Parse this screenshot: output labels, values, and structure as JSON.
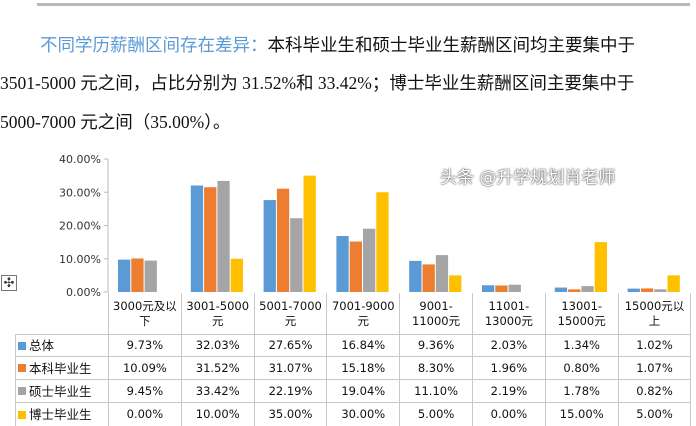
{
  "paragraph": {
    "highlight": "不同学历薪酬区间存在差异：",
    "line1": "本科毕业生和硕士毕业生薪酬区间均主要集中于",
    "line2": "3501-5000 元之间，占比分别为 31.52%和 33.42%；博士毕业生薪酬区间主要集中于",
    "line3": "5000-7000 元之间（35.00%）。"
  },
  "watermark": "头条 @升学规划肖老师",
  "colors": {
    "总体": "#5B9BD5",
    "本科毕业生": "#ED7D31",
    "硕士毕业生": "#A5A5A5",
    "博士毕业生": "#FFC000"
  },
  "chart_data": {
    "type": "bar",
    "categories": [
      "3000元及以下",
      "3001-5000元",
      "5001-7000元",
      "7001-9000元",
      "9001-11000元",
      "11001-13000元",
      "13001-15000元",
      "15000元以上"
    ],
    "series": [
      {
        "name": "总体",
        "values": [
          9.73,
          32.03,
          27.65,
          16.84,
          9.36,
          2.03,
          1.34,
          1.02
        ],
        "labels": [
          "9.73%",
          "32.03%",
          "27.65%",
          "16.84%",
          "9.36%",
          "2.03%",
          "1.34%",
          "1.02%"
        ]
      },
      {
        "name": "本科毕业生",
        "values": [
          10.09,
          31.52,
          31.07,
          15.18,
          8.3,
          1.96,
          0.8,
          1.07
        ],
        "labels": [
          "10.09%",
          "31.52%",
          "31.07%",
          "15.18%",
          "8.30%",
          "1.96%",
          "0.80%",
          "1.07%"
        ]
      },
      {
        "name": "硕士毕业生",
        "values": [
          9.45,
          33.42,
          22.19,
          19.04,
          11.1,
          2.19,
          1.78,
          0.82
        ],
        "labels": [
          "9.45%",
          "33.42%",
          "22.19%",
          "19.04%",
          "11.10%",
          "2.19%",
          "1.78%",
          "0.82%"
        ]
      },
      {
        "name": "博士毕业生",
        "values": [
          0.0,
          10.0,
          35.0,
          30.0,
          5.0,
          0.0,
          15.0,
          5.0
        ],
        "labels": [
          "0.00%",
          "10.00%",
          "35.00%",
          "30.00%",
          "5.00%",
          "0.00%",
          "15.00%",
          "5.00%"
        ]
      }
    ],
    "yticks": [
      "0.00%",
      "10.00%",
      "20.00%",
      "30.00%",
      "40.00%"
    ],
    "ylim": [
      0,
      40
    ],
    "grid": false,
    "legend": "data-table"
  }
}
